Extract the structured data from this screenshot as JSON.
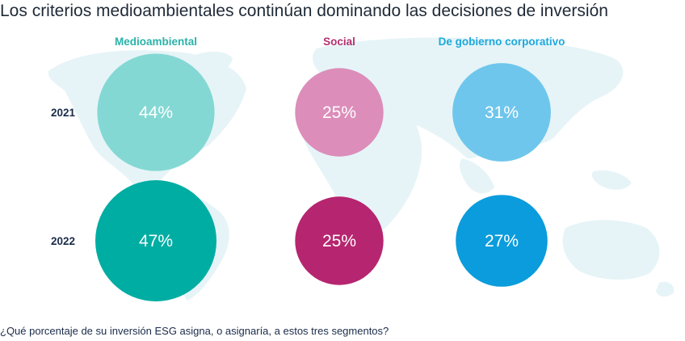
{
  "title": "Los criterios medioambientales continúan dominando las decisiones de inversión",
  "footnote": "¿Qué porcentaje de su inversión ESG asigna, o asignaría, a estos tres segmentos?",
  "chart_data": {
    "type": "bubble",
    "rows": [
      "2021",
      "2022"
    ],
    "columns": [
      {
        "name": "Medioambiental",
        "header_color": "#2ab3a8",
        "colors": [
          "#84d8d3",
          "#00ada3"
        ],
        "values": [
          44,
          47
        ]
      },
      {
        "name": "Social",
        "header_color": "#b2306f",
        "colors": [
          "#dc8dba",
          "#b6256f"
        ],
        "values": [
          25,
          25
        ]
      },
      {
        "name": "De gobierno corporativo",
        "header_color": "#1ca8dd",
        "colors": [
          "#6fc6ec",
          "#0a9cdc"
        ],
        "values": [
          31,
          27
        ]
      }
    ],
    "value_suffix": "%",
    "map_color": "#e6f4f7"
  }
}
